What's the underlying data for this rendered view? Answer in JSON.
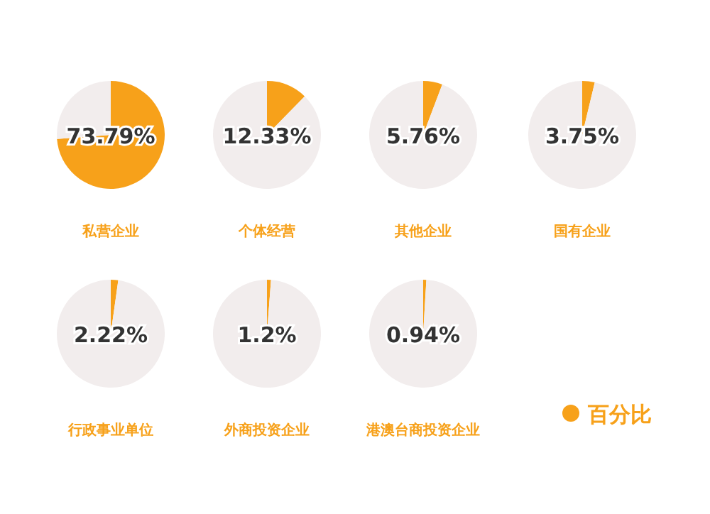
{
  "chart_data": [
    {
      "type": "pie",
      "title": "私营企业",
      "categories": [
        null,
        null
      ],
      "values": [
        73.79,
        26.21
      ],
      "colors": [
        "#f7a11a",
        "#f2eded"
      ],
      "annotations": [
        "73.79%"
      ]
    },
    {
      "type": "pie",
      "title": "个体经营",
      "categories": [
        null,
        null
      ],
      "values": [
        12.33,
        87.67
      ],
      "colors": [
        "#f7a11a",
        "#f2eded"
      ],
      "annotations": [
        "12.33%"
      ]
    },
    {
      "type": "pie",
      "title": "其他企业",
      "categories": [
        null,
        null
      ],
      "values": [
        5.76,
        94.24
      ],
      "colors": [
        "#f7a11a",
        "#f2eded"
      ],
      "annotations": [
        "5.76%"
      ]
    },
    {
      "type": "pie",
      "title": "国有企业",
      "categories": [
        null,
        null
      ],
      "values": [
        3.75,
        96.25
      ],
      "colors": [
        "#f7a11a",
        "#f2eded"
      ],
      "annotations": [
        "3.75%"
      ]
    },
    {
      "type": "pie",
      "title": "行政事业单位",
      "categories": [
        null,
        null
      ],
      "values": [
        2.22,
        97.78
      ],
      "colors": [
        "#f7a11a",
        "#f2eded"
      ],
      "annotations": [
        "2.22%"
      ]
    },
    {
      "type": "pie",
      "title": "外商投资企业",
      "categories": [
        null,
        null
      ],
      "values": [
        1.2,
        98.8
      ],
      "colors": [
        "#f7a11a",
        "#f2eded"
      ],
      "annotations": [
        "1.2%"
      ]
    },
    {
      "type": "pie",
      "title": "港澳台商投资企业",
      "categories": [
        "百分比",
        null
      ],
      "values": [
        0.94,
        99.06
      ],
      "colors": [
        "#f7a11a",
        "#f2eded"
      ],
      "annotations": [
        "0.94%"
      ],
      "legend": "bottom right"
    }
  ]
}
